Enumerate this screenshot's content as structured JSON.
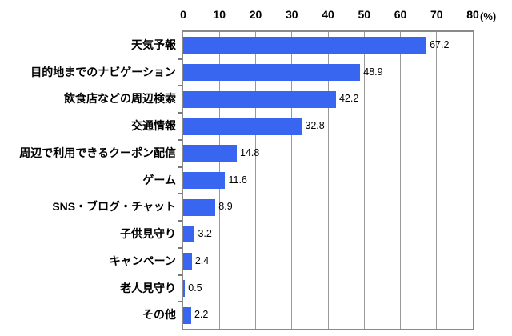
{
  "chart_data": {
    "type": "bar",
    "orientation": "horizontal",
    "title": "",
    "categories": [
      "天気予報",
      "目的地までのナビゲーション",
      "飲食店などの周辺検索",
      "交通情報",
      "周辺で利用できるクーポン配信",
      "ゲーム",
      "SNS・ブログ・チャット",
      "子供見守り",
      "キャンペーン",
      "老人見守り",
      "その他"
    ],
    "values": [
      67.2,
      48.9,
      42.2,
      32.8,
      14.8,
      11.6,
      8.9,
      3.2,
      2.4,
      0.5,
      2.2
    ],
    "value_labels": [
      "67.2",
      "48.9",
      "42.2",
      "32.8",
      "14.8",
      "11.6",
      "8.9",
      "3.2",
      "2.4",
      "0.5",
      "2.2"
    ],
    "xlabel": "",
    "ylabel": "",
    "axis": {
      "min": 0,
      "max": 80,
      "tick_interval": 10,
      "tick_labels": [
        "0",
        "10",
        "20",
        "30",
        "40",
        "50",
        "60",
        "70",
        "80"
      ],
      "unit_label": "(%)",
      "position": "top"
    },
    "grid": true,
    "legend": false,
    "colors": {
      "bar": "#3966f0",
      "plot_border": "#8a8a8a",
      "gridline": "#999999",
      "text": "#000000",
      "background": "#ffffff"
    }
  }
}
